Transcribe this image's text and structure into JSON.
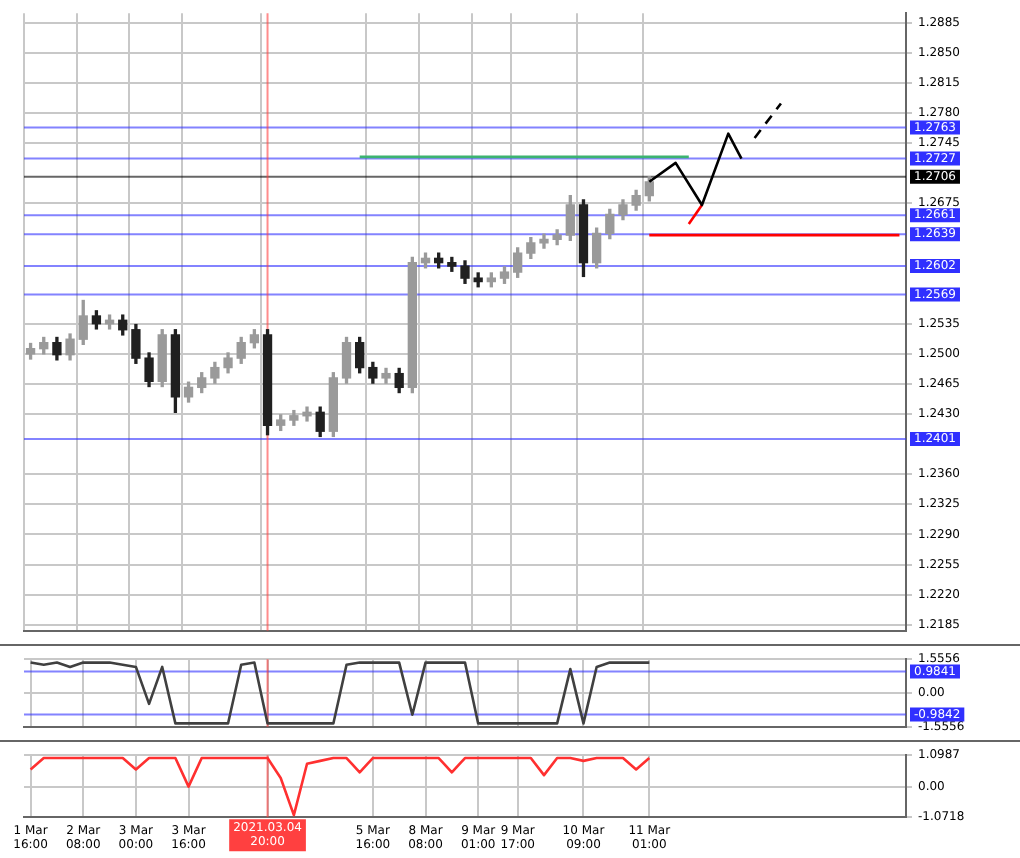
{
  "chart_data": [
    {
      "type": "candlestick",
      "grid": true,
      "tick_labels": "y",
      "colors": [
        "#9a9a9a",
        "#9a9a9a",
        "#202020",
        "#9a9a9a",
        "#9a9a9a",
        "#202020",
        "#9a9a9a",
        "#202020",
        "#202020",
        "#202020",
        "#9a9a9a",
        "#202020",
        "#9a9a9a",
        "#9a9a9a",
        "#9a9a9a",
        "#9a9a9a",
        "#9a9a9a",
        "#9a9a9a",
        "#202020",
        "#9a9a9a",
        "#9a9a9a",
        "#9a9a9a",
        "#202020",
        "#9a9a9a",
        "#9a9a9a",
        "#202020",
        "#202020",
        "#9a9a9a",
        "#202020",
        "#9a9a9a",
        "#9a9a9a",
        "#202020",
        "#202020",
        "#202020",
        "#202020",
        "#9a9a9a",
        "#9a9a9a",
        "#9a9a9a",
        "#9a9a9a",
        "#9a9a9a",
        "#9a9a9a",
        "#9a9a9a",
        "#202020",
        "#9a9a9a",
        "#9a9a9a",
        "#9a9a9a",
        "#9a9a9a",
        "#9a9a9a",
        null,
        null,
        null,
        null,
        null,
        null,
        null,
        null,
        null,
        null,
        null,
        null,
        null,
        null,
        null,
        null,
        null,
        null,
        null
      ],
      "categories": [
        "1 Mar 16:00",
        null,
        null,
        null,
        "2 Mar 08:00",
        null,
        null,
        null,
        "3 Mar 00:00",
        null,
        null,
        null,
        "3 Mar 16:00",
        null,
        null,
        null,
        null,
        null,
        "2021.03.04 20:00",
        null,
        null,
        null,
        null,
        null,
        null,
        null,
        "5 Mar 16:00",
        null,
        null,
        null,
        "8 Mar 08:00",
        null,
        null,
        null,
        "9 Mar 01:00",
        null,
        null,
        "9 Mar 17:00",
        null,
        null,
        null,
        null,
        "10 Mar 09:00",
        null,
        null,
        null,
        null,
        "11 Mar 01:00",
        null,
        null,
        null,
        null,
        null,
        null,
        null,
        null,
        null,
        null,
        null,
        null,
        null,
        null,
        null,
        null,
        null,
        null,
        null
      ],
      "ohlc": [
        [
          1.25,
          1.2512,
          1.2494,
          1.2506
        ],
        [
          1.2506,
          1.2519,
          1.25,
          1.2513
        ],
        [
          1.2513,
          1.2519,
          1.2493,
          1.2499
        ],
        [
          1.2499,
          1.2523,
          1.2493,
          1.2517
        ],
        [
          1.2517,
          1.2562,
          1.2511,
          1.2544
        ],
        [
          1.2544,
          1.255,
          1.2529,
          1.2535
        ],
        [
          1.2535,
          1.2545,
          1.2529,
          1.2539
        ],
        [
          1.2539,
          1.2545,
          1.2522,
          1.2528
        ],
        [
          1.2528,
          1.2534,
          1.2489,
          1.2495
        ],
        [
          1.2495,
          1.2501,
          1.2462,
          1.2468
        ],
        [
          1.2468,
          1.2528,
          1.2462,
          1.2522
        ],
        [
          1.2522,
          1.2528,
          1.2432,
          1.245
        ],
        [
          1.245,
          1.2467,
          1.2444,
          1.2461
        ],
        [
          1.2461,
          1.2478,
          1.2455,
          1.2472
        ],
        [
          1.2472,
          1.249,
          1.2466,
          1.2484
        ],
        [
          1.2484,
          1.2501,
          1.2478,
          1.2495
        ],
        [
          1.2495,
          1.2519,
          1.2489,
          1.2513
        ],
        [
          1.2513,
          1.2528,
          1.2507,
          1.2522
        ],
        [
          1.2522,
          1.2528,
          1.2406,
          1.2417
        ],
        [
          1.2417,
          1.2429,
          1.2411,
          1.2423
        ],
        [
          1.2423,
          1.2434,
          1.2417,
          1.2428
        ],
        [
          1.2428,
          1.2438,
          1.2422,
          1.2432
        ],
        [
          1.2432,
          1.2438,
          1.2404,
          1.241
        ],
        [
          1.241,
          1.2478,
          1.2404,
          1.2472
        ],
        [
          1.2472,
          1.2519,
          1.2466,
          1.2513
        ],
        [
          1.2513,
          1.2519,
          1.2478,
          1.2484
        ],
        [
          1.2484,
          1.249,
          1.2466,
          1.2472
        ],
        [
          1.2472,
          1.2483,
          1.2466,
          1.2477
        ],
        [
          1.2477,
          1.2483,
          1.2455,
          1.2461
        ],
        [
          1.2461,
          1.2612,
          1.2455,
          1.2606
        ],
        [
          1.2606,
          1.2617,
          1.26,
          1.2611
        ],
        [
          1.2611,
          1.2617,
          1.26,
          1.2606
        ],
        [
          1.2606,
          1.2612,
          1.2596,
          1.2602
        ],
        [
          1.2602,
          1.2608,
          1.2582,
          1.2588
        ],
        [
          1.2588,
          1.2594,
          1.2578,
          1.2584
        ],
        [
          1.2584,
          1.2594,
          1.2578,
          1.2588
        ],
        [
          1.2588,
          1.2601,
          1.2582,
          1.2595
        ],
        [
          1.2595,
          1.2623,
          1.2589,
          1.2617
        ],
        [
          1.2617,
          1.2635,
          1.2611,
          1.2629
        ],
        [
          1.2629,
          1.2639,
          1.2623,
          1.2633
        ],
        [
          1.2633,
          1.2644,
          1.2627,
          1.2638
        ],
        [
          1.2638,
          1.2684,
          1.2632,
          1.2673
        ],
        [
          1.2673,
          1.2679,
          1.259,
          1.2606
        ],
        [
          1.2606,
          1.2646,
          1.26,
          1.264
        ],
        [
          1.264,
          1.2668,
          1.2634,
          1.2662
        ],
        [
          1.2662,
          1.2679,
          1.2656,
          1.2673
        ],
        [
          1.2673,
          1.269,
          1.2667,
          1.2684
        ],
        [
          1.2684,
          1.2706,
          1.2678,
          1.27
        ],
        null,
        null,
        null,
        null,
        null,
        null,
        null,
        null,
        null,
        null,
        null,
        null,
        null,
        null,
        null,
        null,
        null,
        null,
        null
      ],
      "series": [
        {
          "type": "line",
          "color": "#3cb371",
          "values": [
            null,
            null,
            null,
            null,
            null,
            null,
            null,
            null,
            null,
            null,
            null,
            null,
            null,
            null,
            null,
            null,
            null,
            null,
            null,
            null,
            null,
            null,
            null,
            null,
            null,
            1.2729,
            1.2729,
            1.2729,
            1.2729,
            1.2729,
            1.2729,
            1.2729,
            1.2729,
            1.2729,
            1.2729,
            1.2729,
            1.2729,
            1.2729,
            1.2729,
            1.2729,
            1.2729,
            1.2729,
            1.2729,
            1.2729,
            1.2729,
            1.2729,
            1.2729,
            1.2729,
            1.2729,
            1.2729,
            1.2729,
            null,
            null,
            null,
            null,
            null,
            null,
            null,
            null,
            null,
            null,
            null,
            null,
            null,
            null,
            null,
            null
          ]
        },
        {
          "type": "line",
          "color": "#ff0000",
          "values": [
            null,
            null,
            null,
            null,
            null,
            null,
            null,
            null,
            null,
            null,
            null,
            null,
            null,
            null,
            null,
            null,
            null,
            null,
            null,
            null,
            null,
            null,
            null,
            null,
            null,
            null,
            null,
            null,
            null,
            null,
            null,
            null,
            null,
            null,
            null,
            null,
            null,
            null,
            null,
            null,
            null,
            null,
            null,
            null,
            null,
            null,
            null,
            1.2638,
            1.2638,
            1.2638,
            1.2638,
            1.2638,
            1.2638,
            1.2638,
            1.2638,
            1.2638,
            1.2638,
            1.2638,
            1.2638,
            1.2638,
            1.2638,
            1.2638,
            1.2638,
            1.2638,
            1.2638,
            1.2638,
            1.2638
          ]
        },
        {
          "type": "line",
          "color": "#000000",
          "values": [
            null,
            null,
            null,
            null,
            null,
            null,
            null,
            null,
            null,
            null,
            null,
            null,
            null,
            null,
            null,
            null,
            null,
            null,
            null,
            null,
            null,
            null,
            null,
            null,
            null,
            null,
            null,
            null,
            null,
            null,
            null,
            null,
            null,
            null,
            null,
            null,
            null,
            null,
            null,
            null,
            null,
            null,
            null,
            null,
            null,
            null,
            null,
            1.27,
            null,
            1.2722,
            null,
            1.2673,
            null,
            1.2756,
            1.2727,
            null,
            null,
            null,
            null,
            null,
            null,
            null,
            null,
            null,
            null,
            null,
            null
          ]
        },
        {
          "type": "line",
          "color": "#000000",
          "line_style": "dashed",
          "values": [
            null,
            null,
            null,
            null,
            null,
            null,
            null,
            null,
            null,
            null,
            null,
            null,
            null,
            null,
            null,
            null,
            null,
            null,
            null,
            null,
            null,
            null,
            null,
            null,
            null,
            null,
            null,
            null,
            null,
            null,
            null,
            null,
            null,
            null,
            null,
            null,
            null,
            null,
            null,
            null,
            null,
            null,
            null,
            null,
            null,
            null,
            null,
            null,
            null,
            null,
            null,
            null,
            null,
            null,
            null,
            1.2751,
            null,
            1.2791,
            null,
            null,
            null,
            null,
            null,
            null,
            null,
            null,
            null
          ]
        },
        {
          "type": "line",
          "color": "#ff0000",
          "values": [
            null,
            null,
            null,
            null,
            null,
            null,
            null,
            null,
            null,
            null,
            null,
            null,
            null,
            null,
            null,
            null,
            null,
            null,
            null,
            null,
            null,
            null,
            null,
            null,
            null,
            null,
            null,
            null,
            null,
            null,
            null,
            null,
            null,
            null,
            null,
            null,
            null,
            null,
            null,
            null,
            null,
            null,
            null,
            null,
            null,
            null,
            null,
            null,
            null,
            null,
            1.2651,
            1.2673,
            null,
            null,
            null,
            null,
            null,
            null,
            null,
            null,
            null,
            null,
            null,
            null,
            null,
            null,
            null
          ]
        }
      ],
      "ylim": [
        1.2178,
        1.2896
      ],
      "yticks": [
        1.2185,
        {
          "value": 1.222,
          "label": "1.2220"
        },
        1.2255,
        {
          "value": 1.229,
          "label": "1.2290"
        },
        1.2325,
        {
          "value": 1.236,
          "label": "1.2360"
        },
        {
          "value": 1.243,
          "label": "1.2430"
        },
        1.2465,
        {
          "value": 1.25,
          "label": "1.2500"
        },
        1.2535,
        1.2675,
        1.2745,
        {
          "value": 1.278,
          "label": "1.2780"
        },
        1.2815,
        {
          "value": 1.285,
          "label": "1.2850"
        },
        1.2885
      ],
      "ref_lines": [
        {
          "axis": "y",
          "value": 1.2763,
          "label": "1.2763",
          "color": "#3030ff"
        },
        {
          "axis": "y",
          "value": 1.2727,
          "label": "1.2727",
          "color": "#3030ff"
        },
        {
          "axis": "y",
          "value": 1.2706,
          "label": "1.2706",
          "color": "#000000"
        },
        {
          "axis": "y",
          "value": 1.2661,
          "label": "1.2661",
          "color": "#3030ff"
        },
        {
          "axis": "y",
          "value": 1.2639,
          "label": "1.2639",
          "color": "#3030ff"
        },
        {
          "axis": "y",
          "value": 1.2602,
          "label": "1.2602",
          "color": "#3030ff"
        },
        {
          "axis": "y",
          "value": 1.2569,
          "label": "1.2569",
          "color": "#3030ff"
        },
        {
          "axis": "y",
          "value": 1.2401,
          "label": "1.2401",
          "color": "#3030ff"
        },
        {
          "axis": "x",
          "value": "2021.03.04 20:00",
          "color": "#ff4040"
        }
      ]
    },
    {
      "type": "line",
      "color": "#404040",
      "grid": true,
      "tick_labels": "y",
      "categories": [
        "1 Mar 16:00",
        null,
        null,
        null,
        "2 Mar 08:00",
        null,
        null,
        null,
        "3 Mar 00:00",
        null,
        null,
        null,
        "3 Mar 16:00",
        null,
        null,
        null,
        null,
        null,
        "2021.03.04 20:00",
        null,
        null,
        null,
        null,
        null,
        null,
        null,
        "5 Mar 16:00",
        null,
        null,
        null,
        "8 Mar 08:00",
        null,
        null,
        null,
        "9 Mar 01:00",
        null,
        null,
        "9 Mar 17:00",
        null,
        null,
        null,
        null,
        "10 Mar 09:00",
        null,
        null,
        null,
        null,
        "11 Mar 01:00",
        null,
        null,
        null,
        null,
        null,
        null,
        null,
        null,
        null,
        null,
        null,
        null,
        null,
        null,
        null,
        null,
        null,
        null,
        null
      ],
      "values": [
        1.4,
        1.3,
        1.4,
        1.2,
        1.4,
        1.4,
        1.4,
        1.3,
        1.2,
        -0.5,
        1.2,
        -1.4,
        -1.4,
        -1.4,
        -1.4,
        -1.4,
        1.3,
        1.4,
        -1.4,
        -1.4,
        -1.4,
        -1.4,
        -1.4,
        -1.4,
        1.3,
        1.4,
        1.4,
        1.4,
        1.4,
        -1.0,
        1.4,
        1.4,
        1.4,
        1.4,
        -1.4,
        -1.4,
        -1.4,
        -1.4,
        -1.4,
        -1.4,
        -1.4,
        1.1,
        -1.4,
        1.2,
        1.4,
        1.4,
        1.4,
        1.4,
        null,
        null,
        null,
        null,
        null,
        null,
        null,
        null,
        null,
        null,
        null,
        null,
        null,
        null,
        null,
        null,
        null,
        null,
        null
      ],
      "ylim": [
        -1.5556,
        1.5556
      ],
      "yticks": [
        1.5556,
        {
          "value": 0,
          "label": "0.00"
        },
        -1.5556
      ],
      "ref_lines": [
        {
          "axis": "y",
          "value": 0.9841,
          "label": "0.9841",
          "color": "#3030ff"
        },
        {
          "axis": "y",
          "value": -0.9842,
          "label": "-0.9842",
          "color": "#3030ff"
        },
        {
          "axis": "x",
          "value": "2021.03.04 20:00",
          "color": "#ff4040"
        }
      ]
    },
    {
      "type": "line",
      "color": "#ff3030",
      "grid": true,
      "categories": [
        "1 Mar 16:00",
        null,
        null,
        null,
        "2 Mar 08:00",
        null,
        null,
        null,
        "3 Mar 00:00",
        null,
        null,
        null,
        "3 Mar 16:00",
        null,
        null,
        null,
        null,
        null,
        "2021.03.04 20:00",
        null,
        null,
        null,
        null,
        null,
        null,
        null,
        "5 Mar 16:00",
        null,
        null,
        null,
        "8 Mar 08:00",
        null,
        null,
        null,
        "9 Mar 01:00",
        null,
        null,
        "9 Mar 17:00",
        null,
        null,
        null,
        null,
        "10 Mar 09:00",
        null,
        null,
        null,
        null,
        "11 Mar 01:00",
        null,
        null,
        null,
        null,
        null,
        null,
        null,
        null,
        null,
        null,
        null,
        null,
        null,
        null,
        null,
        null,
        null,
        null,
        null
      ],
      "values": [
        0.6,
        1.0,
        1.0,
        1.0,
        1.0,
        1.0,
        1.0,
        1.0,
        0.6,
        1.0,
        1.0,
        1.0,
        0.0,
        1.0,
        1.0,
        1.0,
        1.0,
        1.0,
        1.0,
        0.3,
        -1.0,
        0.8,
        0.9,
        1.0,
        1.0,
        0.5,
        1.0,
        1.0,
        1.0,
        1.0,
        1.0,
        1.0,
        0.5,
        1.0,
        1.0,
        1.0,
        1.0,
        1.0,
        1.0,
        0.4,
        1.0,
        1.0,
        0.9,
        1.0,
        1.0,
        1.0,
        0.6,
        1.0,
        null,
        null,
        null,
        null,
        null,
        null,
        null,
        null,
        null,
        null,
        null,
        null,
        null,
        null,
        null,
        null,
        null,
        null,
        null
      ],
      "ylim": [
        -1.0718,
        1.0987
      ],
      "yticks": [
        1.0987,
        {
          "value": 0,
          "label": "0.00"
        },
        -1.0718
      ],
      "ref_lines": [
        {
          "axis": "x",
          "value": "2021.03.04 20:00",
          "color": "#ff4040"
        }
      ]
    }
  ]
}
